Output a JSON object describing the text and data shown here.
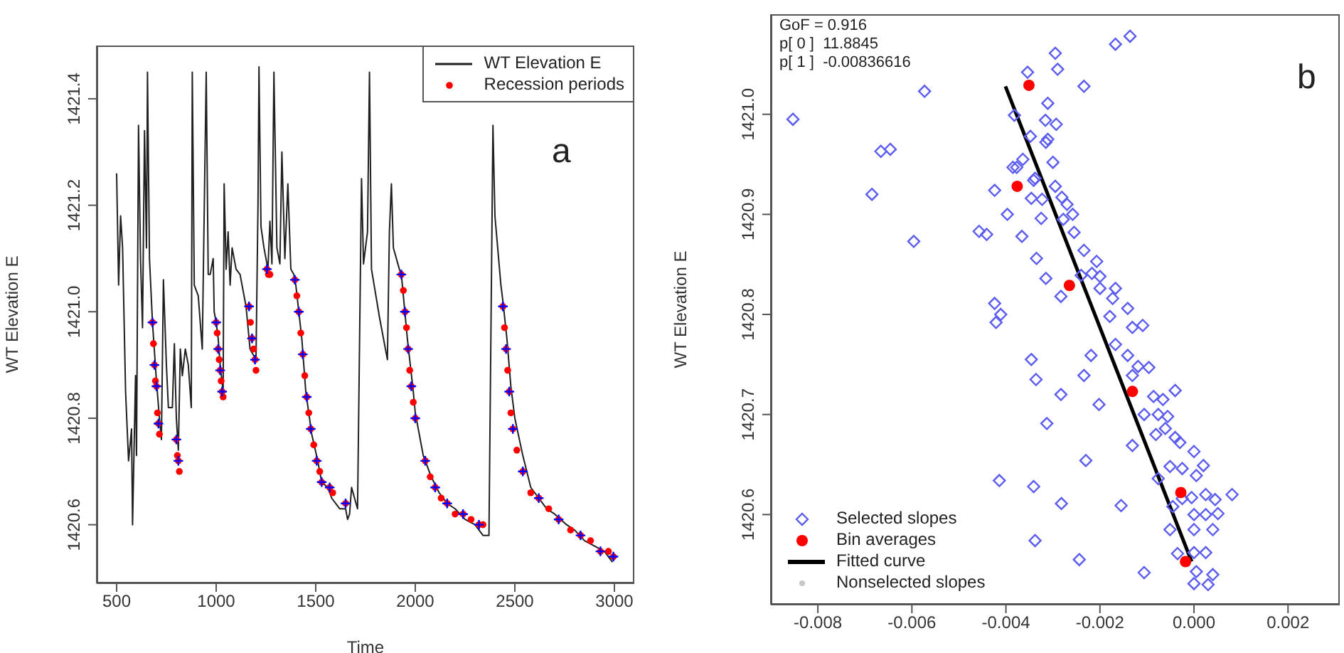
{
  "chart_data": [
    {
      "type": "line",
      "xlabel": "Time",
      "ylabel": "WT Elevation E",
      "xlim": [
        400,
        3100
      ],
      "ylim": [
        1420.49,
        1421.5
      ],
      "xticks": [
        500,
        1000,
        1500,
        2000,
        2500,
        3000
      ],
      "yticks": [
        1420.6,
        1420.8,
        {
          "value": 1421,
          "label": "1421.0"
        },
        1421.2,
        1421.4
      ],
      "legend": "top right",
      "annotations": [
        "a"
      ],
      "series": [
        {
          "name": "WT Elevation E",
          "marker": "none",
          "color": "#202020",
          "x": [
            500,
            510,
            520,
            530,
            545,
            560,
            575,
            580,
            595,
            600,
            610,
            620,
            630,
            640,
            650,
            655,
            665,
            680,
            700,
            715,
            725,
            735,
            750,
            760,
            780,
            790,
            800,
            810,
            820,
            830,
            845,
            860,
            875,
            880,
            890,
            910,
            930,
            950,
            960,
            970,
            985,
            990,
            1000,
            1010,
            1020,
            1035,
            1040,
            1050,
            1060,
            1070,
            1080,
            1100,
            1120,
            1150,
            1170,
            1200,
            1210,
            1215,
            1225,
            1240,
            1260,
            1270,
            1280,
            1290,
            1305,
            1320,
            1330,
            1345,
            1360,
            1375,
            1390,
            1400,
            1430,
            1450,
            1480,
            1510,
            1530,
            1560,
            1580,
            1600,
            1620,
            1650,
            1660,
            1670,
            1680,
            1710,
            1730,
            1740,
            1760,
            1770,
            1780,
            1820,
            1860,
            1870,
            1880,
            1890,
            1920,
            1930,
            1960,
            1990,
            2000,
            2040,
            2080,
            2120,
            2160,
            2200,
            2250,
            2300,
            2340,
            2370,
            2390,
            2400,
            2430,
            2440,
            2460,
            2480,
            2500,
            2540,
            2580,
            2620,
            2660,
            2700,
            2760,
            2800,
            2850,
            2900,
            2950,
            2990
          ],
          "values": [
            1421.26,
            1421.05,
            1421.18,
            1421.12,
            1420.85,
            1420.72,
            1420.78,
            1420.6,
            1420.88,
            1420.73,
            1421.35,
            1421.1,
            1420.97,
            1421.34,
            1421.12,
            1421.45,
            1421.1,
            1420.98,
            1420.87,
            1420.8,
            1420.76,
            1421.06,
            1420.9,
            1420.82,
            1420.82,
            1420.94,
            1420.8,
            1420.74,
            1420.93,
            1420.88,
            1420.93,
            1420.9,
            1420.82,
            1421.45,
            1421.05,
            1421.03,
            1420.93,
            1421.45,
            1421.07,
            1421.07,
            1421.1,
            1421.0,
            1420.98,
            1420.95,
            1420.9,
            1420.85,
            1421.24,
            1421.08,
            1421.15,
            1421.05,
            1421.12,
            1421.08,
            1421.07,
            1421.01,
            1420.93,
            1420.91,
            1421.2,
            1421.46,
            1421.16,
            1421.12,
            1421.08,
            1421.17,
            1421.09,
            1421.45,
            1421.12,
            1421.09,
            1421.3,
            1421.1,
            1421.24,
            1421.08,
            1421.07,
            1421.05,
            1420.95,
            1420.85,
            1420.77,
            1420.72,
            1420.68,
            1420.67,
            1420.65,
            1420.64,
            1420.63,
            1420.63,
            1420.61,
            1420.62,
            1420.67,
            1420.63,
            1421.25,
            1421.09,
            1421.15,
            1421.45,
            1421.08,
            1420.99,
            1420.91,
            1421.15,
            1421.24,
            1421.12,
            1421.08,
            1421.07,
            1420.95,
            1420.85,
            1420.81,
            1420.73,
            1420.69,
            1420.66,
            1420.64,
            1420.63,
            1420.61,
            1420.6,
            1420.58,
            1420.58,
            1421.35,
            1421.18,
            1421.05,
            1421.02,
            1420.95,
            1420.86,
            1420.8,
            1420.73,
            1420.67,
            1420.65,
            1420.63,
            1420.62,
            1420.6,
            1420.59,
            1420.57,
            1420.56,
            1420.55,
            1420.53
          ]
        },
        {
          "name": "Recession periods",
          "type": "scatter",
          "marker": "circle",
          "color": "#ff0000",
          "x": [
            680,
            685,
            690,
            695,
            700,
            705,
            710,
            715,
            800,
            805,
            810,
            815,
            1000,
            1005,
            1010,
            1015,
            1020,
            1025,
            1030,
            1035,
            1165,
            1172,
            1180,
            1188,
            1195,
            1200,
            1255,
            1262,
            1270,
            1395,
            1405,
            1415,
            1425,
            1435,
            1445,
            1455,
            1465,
            1475,
            1490,
            1505,
            1520,
            1530,
            1570,
            1585,
            1650,
            1930,
            1940,
            1948,
            1956,
            1964,
            1972,
            1980,
            1990,
            2000,
            2050,
            2075,
            2100,
            2130,
            2160,
            2200,
            2240,
            2280,
            2320,
            2340,
            2440,
            2448,
            2456,
            2464,
            2472,
            2480,
            2490,
            2510,
            2540,
            2580,
            2620,
            2670,
            2720,
            2780,
            2830,
            2880,
            2930,
            2970,
            2995
          ],
          "values": [
            1420.98,
            1420.94,
            1420.9,
            1420.87,
            1420.86,
            1420.81,
            1420.79,
            1420.77,
            1420.76,
            1420.73,
            1420.72,
            1420.7,
            1420.98,
            1420.96,
            1420.93,
            1420.91,
            1420.89,
            1420.87,
            1420.85,
            1420.84,
            1421.01,
            1420.98,
            1420.95,
            1420.93,
            1420.91,
            1420.89,
            1421.08,
            1421.07,
            1421.07,
            1421.06,
            1421.03,
            1421.0,
            1420.96,
            1420.92,
            1420.88,
            1420.84,
            1420.81,
            1420.78,
            1420.75,
            1420.72,
            1420.7,
            1420.68,
            1420.67,
            1420.66,
            1420.64,
            1421.07,
            1421.04,
            1421.0,
            1420.97,
            1420.93,
            1420.89,
            1420.86,
            1420.83,
            1420.8,
            1420.72,
            1420.69,
            1420.67,
            1420.65,
            1420.64,
            1420.62,
            1420.62,
            1420.61,
            1420.6,
            1420.6,
            1421.01,
            1420.97,
            1420.93,
            1420.89,
            1420.85,
            1420.81,
            1420.78,
            1420.74,
            1420.7,
            1420.66,
            1420.65,
            1420.63,
            1420.61,
            1420.59,
            1420.58,
            1420.57,
            1420.55,
            1420.55,
            1420.54
          ]
        },
        {
          "type": "scatter",
          "marker": "cross",
          "color": "#0000ff",
          "x": [
            680,
            690,
            700,
            710,
            800,
            810,
            1000,
            1010,
            1020,
            1030,
            1165,
            1180,
            1195,
            1255,
            1395,
            1415,
            1435,
            1455,
            1475,
            1505,
            1530,
            1570,
            1650,
            1930,
            1948,
            1964,
            1980,
            2000,
            2050,
            2100,
            2160,
            2240,
            2320,
            2440,
            2456,
            2472,
            2490,
            2540,
            2620,
            2720,
            2830,
            2930,
            2995
          ],
          "values": [
            1420.98,
            1420.9,
            1420.86,
            1420.79,
            1420.76,
            1420.72,
            1420.98,
            1420.93,
            1420.89,
            1420.85,
            1421.01,
            1420.95,
            1420.91,
            1421.08,
            1421.06,
            1421.0,
            1420.92,
            1420.84,
            1420.78,
            1420.72,
            1420.68,
            1420.67,
            1420.64,
            1421.07,
            1421.0,
            1420.93,
            1420.86,
            1420.8,
            1420.72,
            1420.67,
            1420.64,
            1420.62,
            1420.6,
            1421.01,
            1420.93,
            1420.85,
            1420.78,
            1420.7,
            1420.65,
            1420.61,
            1420.58,
            1420.55,
            1420.54
          ]
        }
      ]
    },
    {
      "type": "scatter",
      "ylabel": "WT Elevation E",
      "xlim": [
        -0.009,
        0.0031
      ],
      "ylim": [
        1420.51,
        1421.1
      ],
      "xticks": [
        -0.008,
        -0.006,
        -0.004,
        -0.002,
        {
          "value": 0,
          "label": "0.000"
        },
        0.002
      ],
      "yticks": [
        1420.6,
        1420.7,
        1420.8,
        1420.9,
        {
          "value": 1421,
          "label": "1421.0"
        }
      ],
      "legend": "bottom left",
      "annotations": [
        "GoF = 0.916",
        "p[ 0 ]  11.8845",
        "p[ 1 ]  -0.00836616",
        "b"
      ],
      "series": [
        {
          "name": "Selected slopes",
          "marker": "diamond",
          "color": "#5c5cf0",
          "x": [
            -0.00136,
            -0.00167,
            -0.00295,
            -0.00354,
            -0.0029,
            -0.00234,
            -0.00573,
            -0.00853,
            -0.00311,
            -0.00382,
            -0.00316,
            -0.00293,
            -0.00348,
            -0.00311,
            -0.00315,
            -0.00666,
            -0.00646,
            -0.00364,
            -0.003,
            -0.00385,
            -0.00377,
            -0.00338,
            -0.00341,
            -0.00685,
            -0.00424,
            -0.00295,
            -0.00346,
            -0.00323,
            -0.00281,
            -0.0027,
            -0.00258,
            -0.00397,
            -0.00325,
            -0.00278,
            -0.00457,
            -0.00441,
            -0.00255,
            -0.00596,
            -0.00366,
            -0.00234,
            -0.00335,
            -0.00207,
            -0.00217,
            -0.00315,
            -0.002,
            -0.0024,
            -0.00167,
            -0.002,
            -0.00283,
            -0.00173,
            -0.00141,
            -0.00424,
            -0.00411,
            -0.00421,
            -0.00179,
            -0.00131,
            -0.00109,
            -0.00167,
            -0.00141,
            -0.00346,
            -0.00219,
            -0.00119,
            -0.00096,
            -0.00131,
            -0.00234,
            -0.00336,
            -0.00283,
            -0.0004,
            -0.00086,
            -0.00066,
            -0.00202,
            -0.00106,
            -0.00076,
            -0.00056,
            -0.00313,
            -0.00061,
            -0.00081,
            -0.0004,
            -0.00131,
            -0.0003,
            0,
            -0.0023,
            -0.00076,
            -0.00051,
            -0.00025,
            0.0002,
            -0.00414,
            5e-05,
            -0.00025,
            -5e-05,
            0.00025,
            0.00045,
            0.00081,
            -0.00341,
            -0.00282,
            -0.00155,
            -0.00045,
            0,
            0.00025,
            0.00051,
            -0.00051,
            0,
            0.0004,
            -0.00338,
            -0.00035,
            0,
            0.00025,
            -0.00244,
            -0.00106,
            5e-05,
            0.0004,
            0,
            0.0003
          ],
          "values": [
            1421.078,
            1421.07,
            1421.061,
            1421.042,
            1421.045,
            1421.028,
            1421.023,
            1420.995,
            1421.011,
            1420.999,
            1420.994,
            1420.99,
            1420.978,
            1420.975,
            1420.972,
            1420.963,
            1420.965,
            1420.955,
            1420.952,
            1420.947,
            1420.947,
            1420.936,
            1420.934,
            1420.92,
            1420.924,
            1420.928,
            1420.916,
            1420.915,
            1420.917,
            1420.91,
            1420.9,
            1420.9,
            1420.896,
            1420.895,
            1420.883,
            1420.88,
            1420.882,
            1420.873,
            1420.878,
            1420.864,
            1420.856,
            1420.853,
            1420.841,
            1420.836,
            1420.838,
            1420.839,
            1420.826,
            1420.826,
            1420.818,
            1420.816,
            1420.806,
            1420.811,
            1420.8,
            1420.792,
            1420.798,
            1420.787,
            1420.789,
            1420.77,
            1420.759,
            1420.755,
            1420.759,
            1420.748,
            1420.747,
            1420.739,
            1420.739,
            1420.735,
            1420.72,
            1420.724,
            1420.718,
            1420.715,
            1420.71,
            1420.7,
            1420.7,
            1420.698,
            1420.691,
            1420.686,
            1420.68,
            1420.677,
            1420.669,
            1420.672,
            1420.663,
            1420.654,
            1420.636,
            1420.648,
            1420.646,
            1420.649,
            1420.634,
            1420.639,
            1420.616,
            1420.617,
            1420.62,
            1420.615,
            1420.62,
            1420.628,
            1420.611,
            1420.609,
            1420.608,
            1420.6,
            1420.6,
            1420.601,
            1420.585,
            1420.585,
            1420.585,
            1420.574,
            1420.561,
            1420.562,
            1420.562,
            1420.555,
            1420.542,
            1420.543,
            1420.54,
            1420.531,
            1420.53
          ]
        },
        {
          "name": "Bin averages",
          "marker": "circle",
          "color": "#ff0000",
          "x": [
            -0.00351,
            -0.00376,
            -0.00265,
            -0.00131,
            -0.00028,
            -0.00018
          ],
          "values": [
            1421.029,
            1420.928,
            1420.829,
            1420.723,
            1420.622,
            1420.553
          ]
        },
        {
          "name": "Fitted curve",
          "type": "line",
          "marker": "none",
          "color": "#000000",
          "x": [
            -0.00401,
            -5e-05
          ],
          "values": [
            1421.028,
            1420.553
          ]
        },
        {
          "name": "Nonselected slopes",
          "marker": "circle",
          "color": "#c8c8c8"
        }
      ]
    }
  ]
}
